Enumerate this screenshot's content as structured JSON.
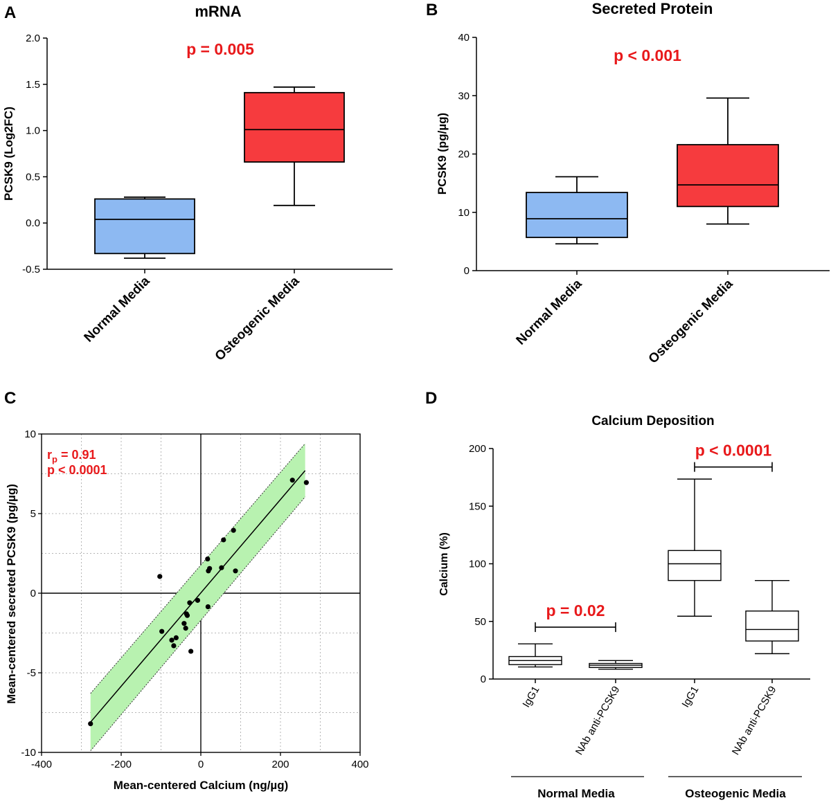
{
  "panels": {
    "A": {
      "letter": "A",
      "title": "mRNA",
      "p_text": "p = 0.005",
      "ylabel": "PCSK9 (Log2FC)"
    },
    "B": {
      "letter": "B",
      "title": "Secreted Protein",
      "p_text": "p < 0.001",
      "ylabel": "PCSK9 (pg/µg)"
    },
    "C": {
      "letter": "C",
      "r_text": "r",
      "r_sub": "p",
      "r_value": " = 0.91",
      "p_text": "p < 0.0001",
      "xlabel": "Mean-centered Calcium (ng/µg)",
      "ylabel": "Mean-centered secreted PCSK9 (pg/µg)"
    },
    "D": {
      "letter": "D",
      "title": "Calcium Deposition",
      "ylabel": "Calcium (%)",
      "p_left": "p = 0.02",
      "p_right": "p < 0.0001",
      "group_left": "Normal Media",
      "group_right": "Osteogenic Media"
    }
  },
  "chart_data": [
    {
      "panel": "A",
      "type": "box",
      "title": "mRNA",
      "ylabel": "PCSK9 (Log2FC)",
      "ylim": [
        -0.5,
        2.0
      ],
      "yticks": [
        -0.5,
        0.0,
        0.5,
        1.0,
        1.5,
        2.0
      ],
      "ytick_labels": [
        "-0.5",
        "0.0",
        "0.5",
        "1.0",
        "1.5",
        "2.0"
      ],
      "categories": [
        "Normal Media",
        "Osteogenic Media"
      ],
      "boxes": [
        {
          "min": -0.38,
          "q1": -0.33,
          "median": 0.04,
          "q3": 0.26,
          "max": 0.28,
          "color": "#8db9f2"
        },
        {
          "min": 0.19,
          "q1": 0.66,
          "median": 1.01,
          "q3": 1.41,
          "max": 1.47,
          "color": "#f63b3e"
        }
      ],
      "annotation": "p = 0.005"
    },
    {
      "panel": "B",
      "type": "box",
      "title": "Secreted Protein",
      "ylabel": "PCSK9 (pg/µg)",
      "ylim": [
        0,
        40
      ],
      "yticks": [
        0,
        10,
        20,
        30,
        40
      ],
      "ytick_labels": [
        "0",
        "10",
        "20",
        "30",
        "40"
      ],
      "categories": [
        "Normal Media",
        "Osteogenic Media"
      ],
      "boxes": [
        {
          "min": 4.6,
          "q1": 5.7,
          "median": 8.9,
          "q3": 13.4,
          "max": 16.1,
          "color": "#8db9f2"
        },
        {
          "min": 8.0,
          "q1": 11.0,
          "median": 14.7,
          "q3": 21.6,
          "max": 29.6,
          "color": "#f63b3e"
        }
      ],
      "annotation": "p < 0.001"
    },
    {
      "panel": "C",
      "type": "scatter",
      "xlabel": "Mean-centered Calcium (ng/µg)",
      "ylabel": "Mean-centered secreted PCSK9 (pg/µg)",
      "xlim": [
        -400,
        400
      ],
      "ylim": [
        -10,
        10
      ],
      "xticks": [
        -400,
        -200,
        0,
        200,
        400
      ],
      "xtick_labels": [
        "-400",
        "-200",
        "0",
        "200",
        "400"
      ],
      "yticks": [
        -10,
        -5,
        0,
        5,
        10
      ],
      "ytick_labels": [
        "-10",
        "-5",
        "0",
        "5",
        "10"
      ],
      "grid": true,
      "points": [
        {
          "x": -277,
          "y": -8.2
        },
        {
          "x": -103,
          "y": 1.05
        },
        {
          "x": -98,
          "y": -2.4
        },
        {
          "x": -73,
          "y": -2.95
        },
        {
          "x": -68,
          "y": -3.3
        },
        {
          "x": -62,
          "y": -2.8
        },
        {
          "x": -42,
          "y": -1.9
        },
        {
          "x": -38,
          "y": -2.2
        },
        {
          "x": -36,
          "y": -1.3
        },
        {
          "x": -34,
          "y": -1.4
        },
        {
          "x": -28,
          "y": -0.6
        },
        {
          "x": -25,
          "y": -3.65
        },
        {
          "x": -8,
          "y": -0.45
        },
        {
          "x": 17,
          "y": 2.15
        },
        {
          "x": 18,
          "y": -0.85
        },
        {
          "x": 19,
          "y": 1.4
        },
        {
          "x": 22,
          "y": 1.55
        },
        {
          "x": 52,
          "y": 1.6
        },
        {
          "x": 57,
          "y": 3.35
        },
        {
          "x": 82,
          "y": 3.95
        },
        {
          "x": 87,
          "y": 1.4
        },
        {
          "x": 230,
          "y": 7.1
        },
        {
          "x": 265,
          "y": 6.95
        }
      ],
      "fit_line": {
        "x": [
          -277,
          262
        ],
        "y": [
          -8.1,
          7.7
        ]
      },
      "ci_band": {
        "x": [
          -277,
          262
        ],
        "lower_y": [
          -9.9,
          6.05
        ],
        "upper_y": [
          -6.3,
          9.4
        ]
      },
      "annotation_r": "rp = 0.91",
      "annotation_p": "p < 0.0001"
    },
    {
      "panel": "D",
      "type": "box",
      "title": "Calcium Deposition",
      "ylabel": "Calcium (%)",
      "ylim": [
        0,
        200
      ],
      "yticks": [
        0,
        50,
        100,
        150,
        200
      ],
      "ytick_labels": [
        "0",
        "50",
        "100",
        "150",
        "200"
      ],
      "categories": [
        "IgG1",
        "NAb anti-PCSK9",
        "IgG1",
        "NAb anti-PCSK9"
      ],
      "groups": [
        "Normal Media",
        "Normal Media",
        "Osteogenic Media",
        "Osteogenic Media"
      ],
      "boxes": [
        {
          "min": 10.5,
          "q1": 12.5,
          "median": 16.0,
          "q3": 19.5,
          "max": 30.5,
          "color": "#ffffff"
        },
        {
          "min": 8.5,
          "q1": 10.0,
          "median": 12.0,
          "q3": 13.5,
          "max": 16.0,
          "color": "#ffffff"
        },
        {
          "min": 54.5,
          "q1": 85.5,
          "median": 100.0,
          "q3": 111.5,
          "max": 173.5,
          "color": "#ffffff"
        },
        {
          "min": 22.0,
          "q1": 33.0,
          "median": 43.0,
          "q3": 59.0,
          "max": 85.5,
          "color": "#ffffff"
        }
      ],
      "comparisons": [
        {
          "between": [
            0,
            1
          ],
          "y": 45,
          "label": "p = 0.02"
        },
        {
          "between": [
            2,
            3
          ],
          "y": 184,
          "label": "p < 0.0001"
        }
      ]
    }
  ]
}
